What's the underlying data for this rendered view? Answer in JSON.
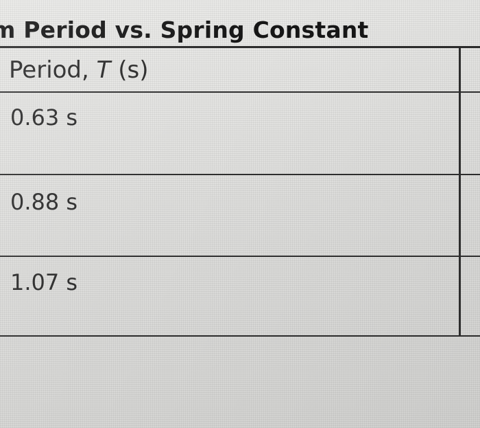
{
  "title": "m Period vs. Spring Constant",
  "header": {
    "prefix": "Period, ",
    "symbol": "T",
    "suffix": " (s)"
  },
  "rows": [
    {
      "period": "0.63 s"
    },
    {
      "period": "0.88 s"
    },
    {
      "period": "1.07 s"
    }
  ]
}
